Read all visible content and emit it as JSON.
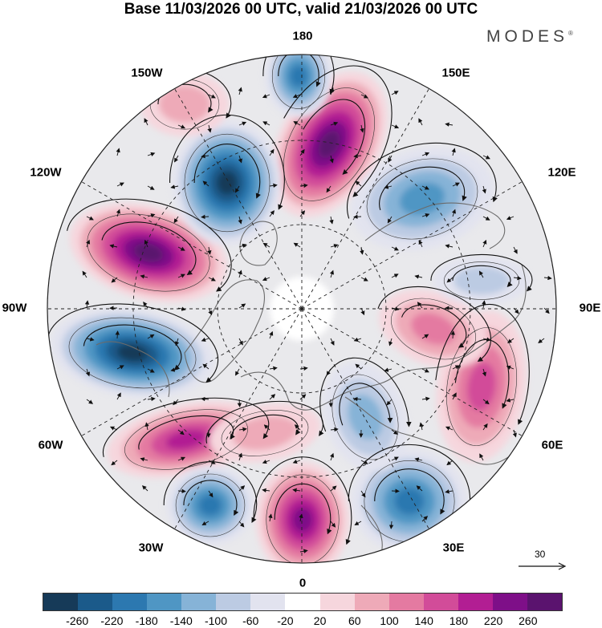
{
  "title": "Base 11/03/2026 00 UTC, valid 21/03/2026 00 UTC",
  "brand": "MODES",
  "brand_mark": "®",
  "longitude_labels": {
    "lon_180": "180",
    "lon_150e": "150E",
    "lon_120e": "120E",
    "lon_90e": "90E",
    "lon_60e": "60E",
    "lon_30e": "30E",
    "lon_0": "0",
    "lon_30w": "30W",
    "lon_60w": "60W",
    "lon_90w": "90W",
    "lon_120w": "120W",
    "lon_150w": "150W"
  },
  "reference_vector": "30",
  "colorbar": {
    "ticks": [
      "-260",
      "-220",
      "-180",
      "-140",
      "-100",
      "-60",
      "-20",
      "20",
      "60",
      "100",
      "140",
      "180",
      "220",
      "260"
    ],
    "colors": [
      "#163a58",
      "#1b5a8a",
      "#2c78b0",
      "#4f96c4",
      "#86b3d7",
      "#bccbe3",
      "#e2e3ef",
      "#ffffff",
      "#f6d6dd",
      "#eeaab8",
      "#e47aa1",
      "#d24c99",
      "#b21e93",
      "#7e0f88",
      "#5a136e"
    ]
  },
  "colors": {
    "map_background": "#e9e9ec",
    "coastline": "#6b6b6b",
    "grid": "#222222",
    "streamline": "#111111"
  }
}
